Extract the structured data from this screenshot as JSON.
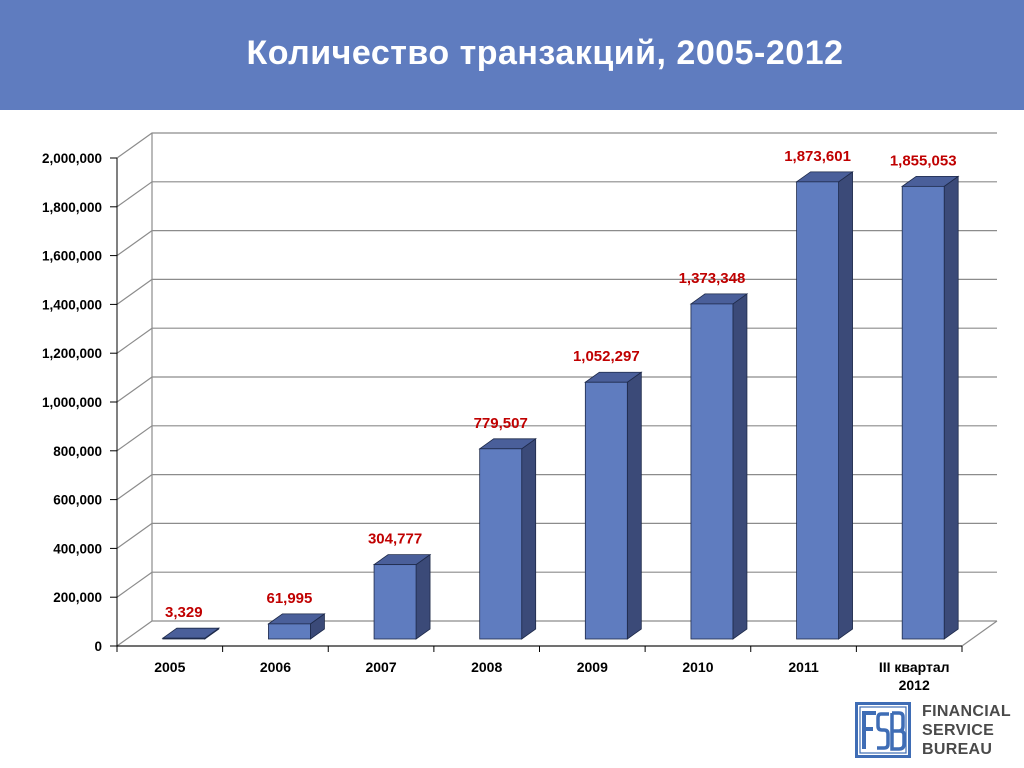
{
  "header": {
    "title": "Количество транзакций, 2005-2012"
  },
  "colors": {
    "header_bg": "#5f7cbf",
    "bar_front": "#5f7cbf",
    "bar_side": "#3b4a78",
    "bar_top": "#4a5f9a",
    "value_label": "#c00000",
    "grid": "#8c8c8c",
    "logo": "#3f6db5"
  },
  "logo": {
    "mark": "FSB",
    "lines": [
      "FINANCIAL",
      "SERVICE",
      "BUREAU"
    ]
  },
  "chart_data": {
    "type": "bar",
    "title": "Количество транзакций, 2005-2012",
    "categories": [
      "2005",
      "2006",
      "2007",
      "2008",
      "2009",
      "2010",
      "2011",
      "III квартал 2012"
    ],
    "values": [
      3329,
      61995,
      304777,
      779507,
      1052297,
      1373348,
      1873601,
      1855053
    ],
    "value_labels": [
      "3,329",
      "61,995",
      "304,777",
      "779,507",
      "1,052,297",
      "1,373,348",
      "1,873,601",
      "1,855,053"
    ],
    "ylim": [
      0,
      2000000
    ],
    "yticks": [
      0,
      200000,
      400000,
      600000,
      800000,
      1000000,
      1200000,
      1400000,
      1600000,
      1800000,
      2000000
    ],
    "ytick_labels": [
      "0",
      "200,000",
      "400,000",
      "600,000",
      "800,000",
      "1,000,000",
      "1,200,000",
      "1,400,000",
      "1,600,000",
      "1,800,000",
      "2,000,000"
    ],
    "grid": true,
    "legend": "none",
    "style": "3d"
  }
}
